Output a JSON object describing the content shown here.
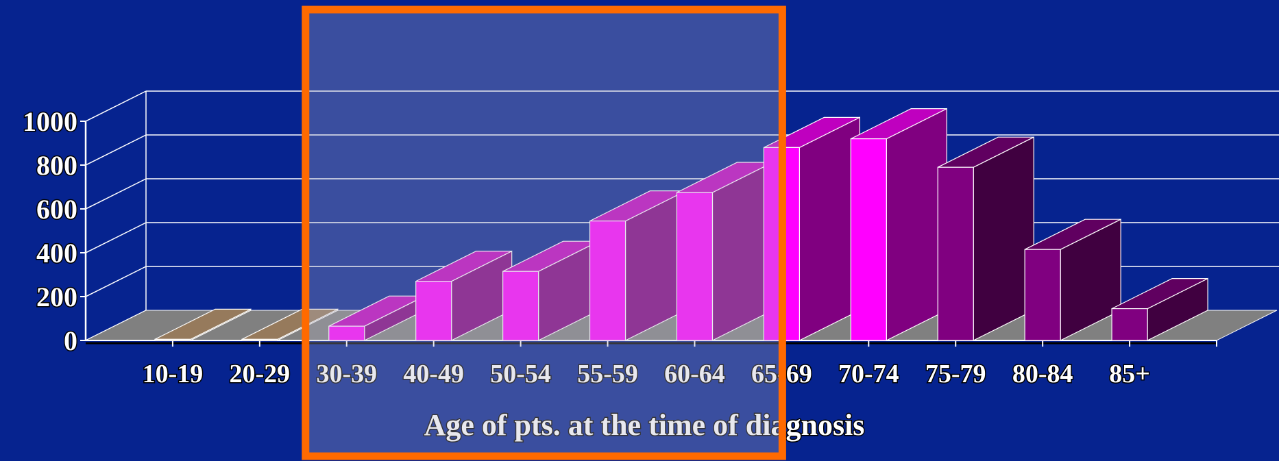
{
  "chart_data": {
    "type": "bar",
    "categories": [
      "10-19",
      "20-29",
      "30-39",
      "40-49",
      "50-54",
      "55-59",
      "60-64",
      "65-69",
      "70-74",
      "75-79",
      "80-84",
      "85+"
    ],
    "values": [
      5,
      5,
      65,
      270,
      315,
      545,
      675,
      880,
      920,
      790,
      415,
      145
    ],
    "xlabel": "Age of pts. at the time of diagnosis",
    "ylabel": "",
    "ylim": [
      0,
      1000
    ],
    "yticks": [
      0,
      200,
      400,
      600,
      800,
      1000
    ],
    "grid": true,
    "legend": "none",
    "bar_colors": [
      "#c8a27a",
      "#c8a27a",
      "#ff00ff",
      "#ff00ff",
      "#ff00ff",
      "#ff00ff",
      "#ff00ff",
      "#ff00ff",
      "#ff00ff",
      "#800080",
      "#800080",
      "#800080"
    ],
    "highlight": {
      "color": "#ff6a00",
      "from_category": "30-39",
      "to_category": "65-69"
    }
  },
  "colors": {
    "background": "#06238f",
    "floor": "#808080",
    "gridline": "#ffffff",
    "highlight_fill": "rgba(180,180,200,0.30)",
    "highlight_stroke": "#ff6a00"
  }
}
